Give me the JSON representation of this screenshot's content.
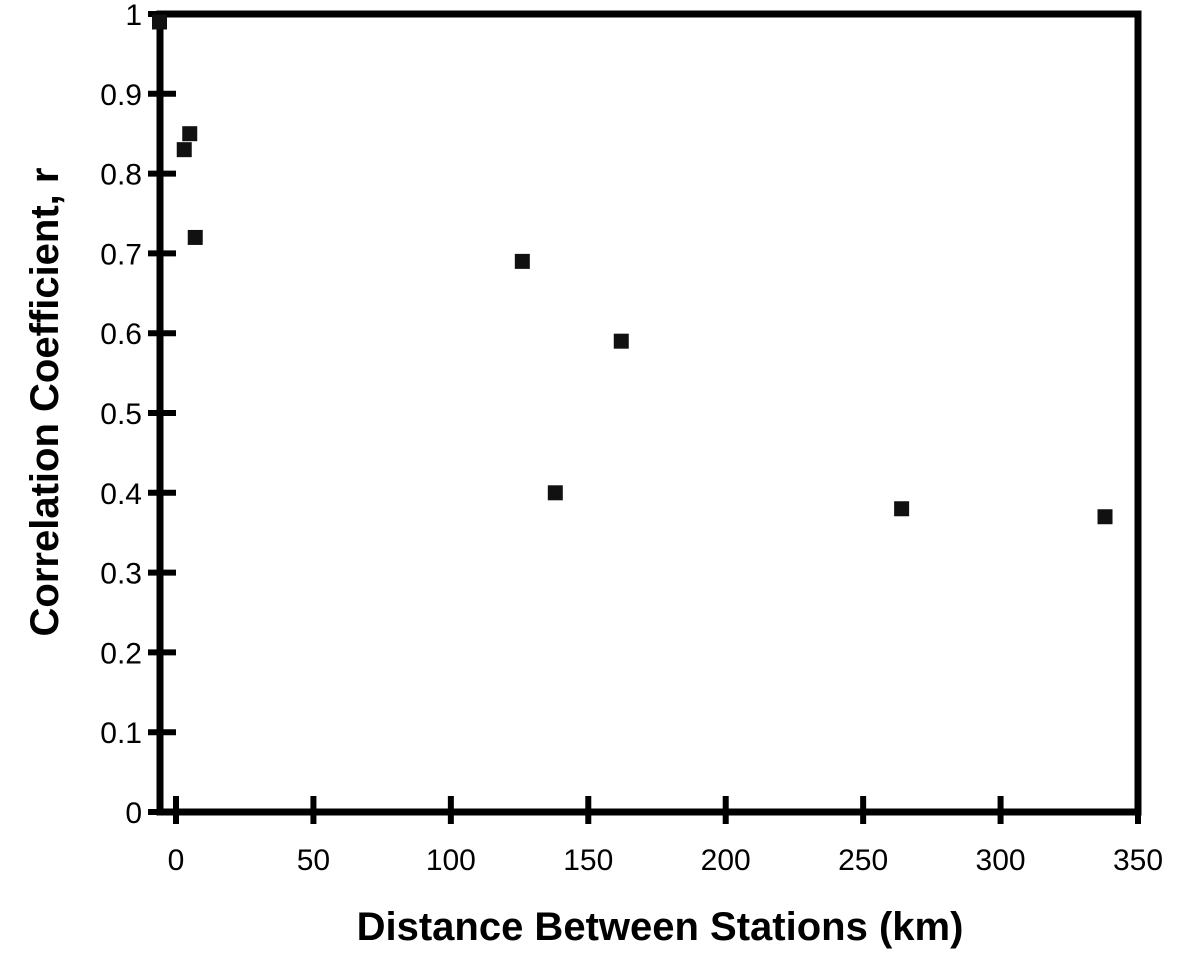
{
  "chart_data": {
    "type": "scatter",
    "title": "",
    "xlabel": "Distance Between Stations (km)",
    "ylabel": "Correlation Coefficient, r",
    "xlim": [
      0,
      350
    ],
    "ylim": [
      0,
      1
    ],
    "x_ticks": [
      0,
      50,
      100,
      150,
      200,
      250,
      300,
      350
    ],
    "y_ticks": [
      0,
      0.1,
      0.2,
      0.3,
      0.4,
      0.5,
      0.6,
      0.7,
      0.8,
      0.9,
      1
    ],
    "grid": false,
    "legend": "none",
    "marker": "square",
    "marker_color": "#111111",
    "series": [
      {
        "points": [
          {
            "x": -6,
            "y": 0.99
          },
          {
            "x": 3,
            "y": 0.83
          },
          {
            "x": 5,
            "y": 0.85
          },
          {
            "x": 7,
            "y": 0.72
          },
          {
            "x": 126,
            "y": 0.69
          },
          {
            "x": 138,
            "y": 0.4
          },
          {
            "x": 162,
            "y": 0.59
          },
          {
            "x": 264,
            "y": 0.38
          },
          {
            "x": 338,
            "y": 0.37
          }
        ]
      }
    ]
  }
}
